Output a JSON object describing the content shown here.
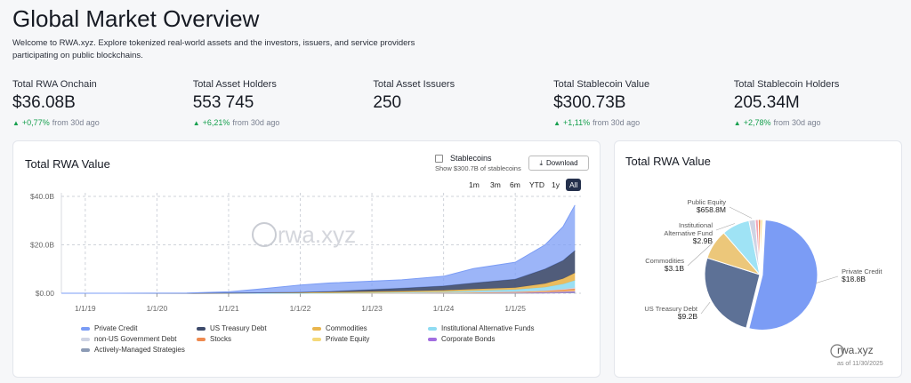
{
  "header": {
    "title": "Global Market Overview",
    "subtitle": "Welcome to RWA.xyz. Explore tokenized real-world assets and the investors, issuers, and service providers participating on public blockchains."
  },
  "stats": [
    {
      "label": "Total RWA Onchain",
      "value": "$36.08B",
      "change": "+0,77%",
      "change_note": "from 30d ago"
    },
    {
      "label": "Total Asset Holders",
      "value": "553 745",
      "change": "+6,21%",
      "change_note": "from 30d ago"
    },
    {
      "label": "Total Asset Issuers",
      "value": "250"
    },
    {
      "label": "Total Stablecoin Value",
      "value": "$300.73B",
      "change": "+1,11%",
      "change_note": "from 30d ago"
    },
    {
      "label": "Total Stablecoin Holders",
      "value": "205.34M",
      "change": "+2,78%",
      "change_note": "from 30d ago"
    }
  ],
  "controls": {
    "checkbox": "Stablecoins",
    "checkbox_note": "Show $300.7B of stablecoins",
    "download": "Download",
    "ranges": [
      "1m",
      "3m",
      "6m",
      "YTD",
      "1y",
      "All"
    ],
    "selected_range": 5
  },
  "chart_data": [
    {
      "type": "area",
      "stacked": true,
      "title": "Total RWA Value",
      "watermark": "rwa.xyz",
      "grid": true,
      "x": [
        "2018-09",
        "2019-06",
        "2020-06",
        "2021-01",
        "2021-06",
        "2022-01",
        "2022-06",
        "2023-01",
        "2023-06",
        "2024-01",
        "2024-06",
        "2025-01",
        "2025-06",
        "2025-09",
        "2025-11"
      ],
      "xlim": [
        "2018-09",
        "2025-12"
      ],
      "xticks": [
        {
          "value": "2019-01",
          "label": "1/1/19"
        },
        {
          "value": "2020-01",
          "label": "1/1/20"
        },
        {
          "value": "2021-01",
          "label": "1/1/21"
        },
        {
          "value": "2022-01",
          "label": "1/1/22"
        },
        {
          "value": "2023-01",
          "label": "1/1/23"
        },
        {
          "value": "2024-01",
          "label": "1/1/24"
        },
        {
          "value": "2025-01",
          "label": "1/1/25"
        }
      ],
      "ylim": [
        0,
        40
      ],
      "yticks": [
        {
          "value": 0,
          "label": "$0.00"
        },
        {
          "value": 20,
          "label": "$20.0B"
        },
        {
          "value": 40,
          "label": "$40.0B"
        }
      ],
      "series": [
        {
          "name": "Private Credit",
          "color": "#7b9cf5",
          "values": [
            0,
            0,
            0.1,
            0.5,
            1.5,
            3,
            3.5,
            3.5,
            3.5,
            4,
            6,
            7,
            10,
            14,
            18.8
          ]
        },
        {
          "name": "US Treasury Debt",
          "color": "#3d4a6b",
          "values": [
            0,
            0,
            0,
            0,
            0,
            0.1,
            0.3,
            0.8,
            1.2,
            1.8,
            2.5,
            3.5,
            6,
            7.5,
            9.2
          ]
        },
        {
          "name": "Commodities",
          "color": "#e9b54d",
          "values": [
            0,
            0,
            0,
            0.1,
            0.2,
            0.3,
            0.4,
            0.5,
            0.5,
            0.6,
            0.7,
            0.8,
            1.5,
            2.2,
            3.1
          ]
        },
        {
          "name": "Institutional Alternative Funds",
          "color": "#8fdcf2",
          "values": [
            0,
            0,
            0,
            0,
            0,
            0,
            0,
            0.1,
            0.2,
            0.3,
            0.5,
            0.8,
            1.3,
            2.0,
            2.9
          ]
        },
        {
          "name": "non-US Government Debt",
          "color": "#cfd4e4",
          "values": [
            0,
            0,
            0,
            0,
            0,
            0,
            0,
            0,
            0,
            0.05,
            0.1,
            0.15,
            0.3,
            0.4,
            0.5
          ]
        },
        {
          "name": "Stocks",
          "color": "#ee8a4f",
          "values": [
            0,
            0,
            0,
            0,
            0,
            0,
            0,
            0,
            0.05,
            0.1,
            0.15,
            0.2,
            0.3,
            0.5,
            0.7
          ]
        },
        {
          "name": "Private Equity",
          "color": "#f5d97a",
          "values": [
            0,
            0,
            0,
            0,
            0,
            0,
            0,
            0,
            0,
            0,
            0.05,
            0.1,
            0.2,
            0.3,
            0.4
          ]
        },
        {
          "name": "Corporate Bonds",
          "color": "#a26ee0",
          "values": [
            0,
            0,
            0,
            0,
            0,
            0,
            0.05,
            0.1,
            0.1,
            0.15,
            0.2,
            0.25,
            0.3,
            0.4,
            0.5
          ]
        },
        {
          "name": "Actively-Managed Strategies",
          "color": "#8c9bb5",
          "values": [
            0,
            0,
            0,
            0,
            0,
            0,
            0,
            0,
            0,
            0,
            0,
            0,
            0.1,
            0.2,
            0.3
          ]
        }
      ]
    },
    {
      "type": "pie",
      "title": "Total RWA Value",
      "watermark": "rwa.xyz",
      "note": "as of 11/30/2025",
      "categories": [
        "Private Credit",
        "US Treasury Debt",
        "Commodities",
        "Institutional Alternative Fund",
        "Public Equity",
        null,
        null,
        null
      ],
      "values": [
        18.8,
        9.2,
        3.1,
        2.9,
        0.6588,
        0.3,
        0.25,
        0.2
      ],
      "value_labels": [
        "$18.8B",
        "$9.2B",
        "$3.1B",
        "$2.9B",
        "$658.8M",
        null,
        null,
        null
      ],
      "colors": [
        "#7b9cf5",
        "#5d7196",
        "#ecc77a",
        "#9fe3f5",
        "#cfd4e4",
        "#f3a3b5",
        "#ee8a4f",
        "#f5d97a"
      ]
    }
  ]
}
